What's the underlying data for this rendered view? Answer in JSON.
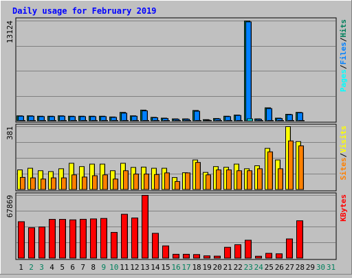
{
  "colors": {
    "background": "#c0c0c0",
    "panel": "#c0c0c0",
    "title": "#0000ff",
    "weekday": "#000000",
    "weekend": "#00805c",
    "pages": "#00ffff",
    "files": "#0080ff",
    "hits": "#00805c",
    "visits": "#ffff00",
    "sites": "#ff8000",
    "kbytes": "#ff0000"
  },
  "chart_data": {
    "title": "Daily usage for February 2019",
    "type": "bar",
    "days": [
      "1",
      "2",
      "3",
      "4",
      "5",
      "6",
      "7",
      "8",
      "9",
      "10",
      "11",
      "12",
      "13",
      "14",
      "15",
      "16",
      "17",
      "18",
      "19",
      "20",
      "21",
      "22",
      "23",
      "24",
      "25",
      "26",
      "27",
      "28",
      "29",
      "30",
      "31"
    ],
    "weekend_days": [
      "2",
      "3",
      "9",
      "10",
      "16",
      "17",
      "23",
      "24",
      "30",
      "31"
    ],
    "panels": [
      {
        "name": "hits-files-pages",
        "max_label": "13124",
        "ylim": [
          0,
          13124
        ],
        "legend": [
          {
            "text": "Pages",
            "color_key": "pages"
          },
          {
            "text": "Files",
            "color_key": "files"
          },
          {
            "text": "Hits",
            "color_key": "hits"
          }
        ],
        "series": [
          {
            "name": "Hits",
            "color_key": "hits",
            "values": [
              700,
              700,
              650,
              650,
              700,
              650,
              650,
              650,
              650,
              550,
              1150,
              700,
              1450,
              500,
              400,
              300,
              300,
              1400,
              200,
              350,
              650,
              800,
              13124,
              300,
              1750,
              400,
              900,
              1150,
              0,
              0,
              0
            ]
          },
          {
            "name": "Files",
            "color_key": "files",
            "values": [
              650,
              650,
              600,
              600,
              650,
              600,
              600,
              600,
              600,
              500,
              1050,
              650,
              1350,
              450,
              350,
              250,
              250,
              1300,
              150,
              300,
              600,
              750,
              13000,
              250,
              1650,
              350,
              850,
              1100,
              0,
              0,
              0
            ]
          },
          {
            "name": "Pages",
            "color_key": "pages",
            "values": [
              30,
              30,
              30,
              30,
              30,
              30,
              30,
              30,
              30,
              30,
              40,
              30,
              40,
              20,
              20,
              15,
              15,
              40,
              10,
              15,
              30,
              40,
              300,
              15,
              50,
              15,
              30,
              40,
              0,
              0,
              0
            ]
          }
        ]
      },
      {
        "name": "visits-sites",
        "max_label": "381",
        "ylim": [
          0,
          381
        ],
        "legend": [
          {
            "text": "Sites",
            "color_key": "sites"
          },
          {
            "text": "Visits",
            "color_key": "visits"
          }
        ],
        "series": [
          {
            "name": "Visits",
            "color_key": "visits",
            "values": [
              120,
              130,
              115,
              110,
              127,
              160,
              140,
              155,
              155,
              115,
              160,
              135,
              137,
              130,
              130,
              74,
              103,
              180,
              105,
              140,
              136,
              155,
              127,
              145,
              250,
              180,
              381,
              291,
              0,
              0,
              0
            ]
          },
          {
            "name": "Sites",
            "color_key": "sites",
            "values": [
              75,
              72,
              65,
              72,
              72,
              90,
              77,
              85,
              90,
              65,
              115,
              95,
              95,
              92,
              102,
              50,
              102,
              165,
              90,
              120,
              120,
              115,
              115,
              127,
              229,
              127,
              295,
              265,
              0,
              0,
              0
            ]
          }
        ]
      },
      {
        "name": "kbytes",
        "max_label": "67869",
        "ylim": [
          0,
          67869
        ],
        "legend": [
          {
            "text": "KBytes",
            "color_key": "kbytes"
          }
        ],
        "series": [
          {
            "name": "KBytes",
            "color_key": "kbytes",
            "values": [
              39500,
              33000,
              33800,
              42000,
              42000,
              41500,
              42100,
              42500,
              43000,
              28000,
              47500,
              43500,
              67869,
              27000,
              13500,
              4500,
              4500,
              4200,
              2800,
              2500,
              12000,
              14800,
              19600,
              2400,
              5500,
              5000,
              21000,
              40500,
              0,
              0,
              0
            ]
          }
        ]
      }
    ]
  }
}
